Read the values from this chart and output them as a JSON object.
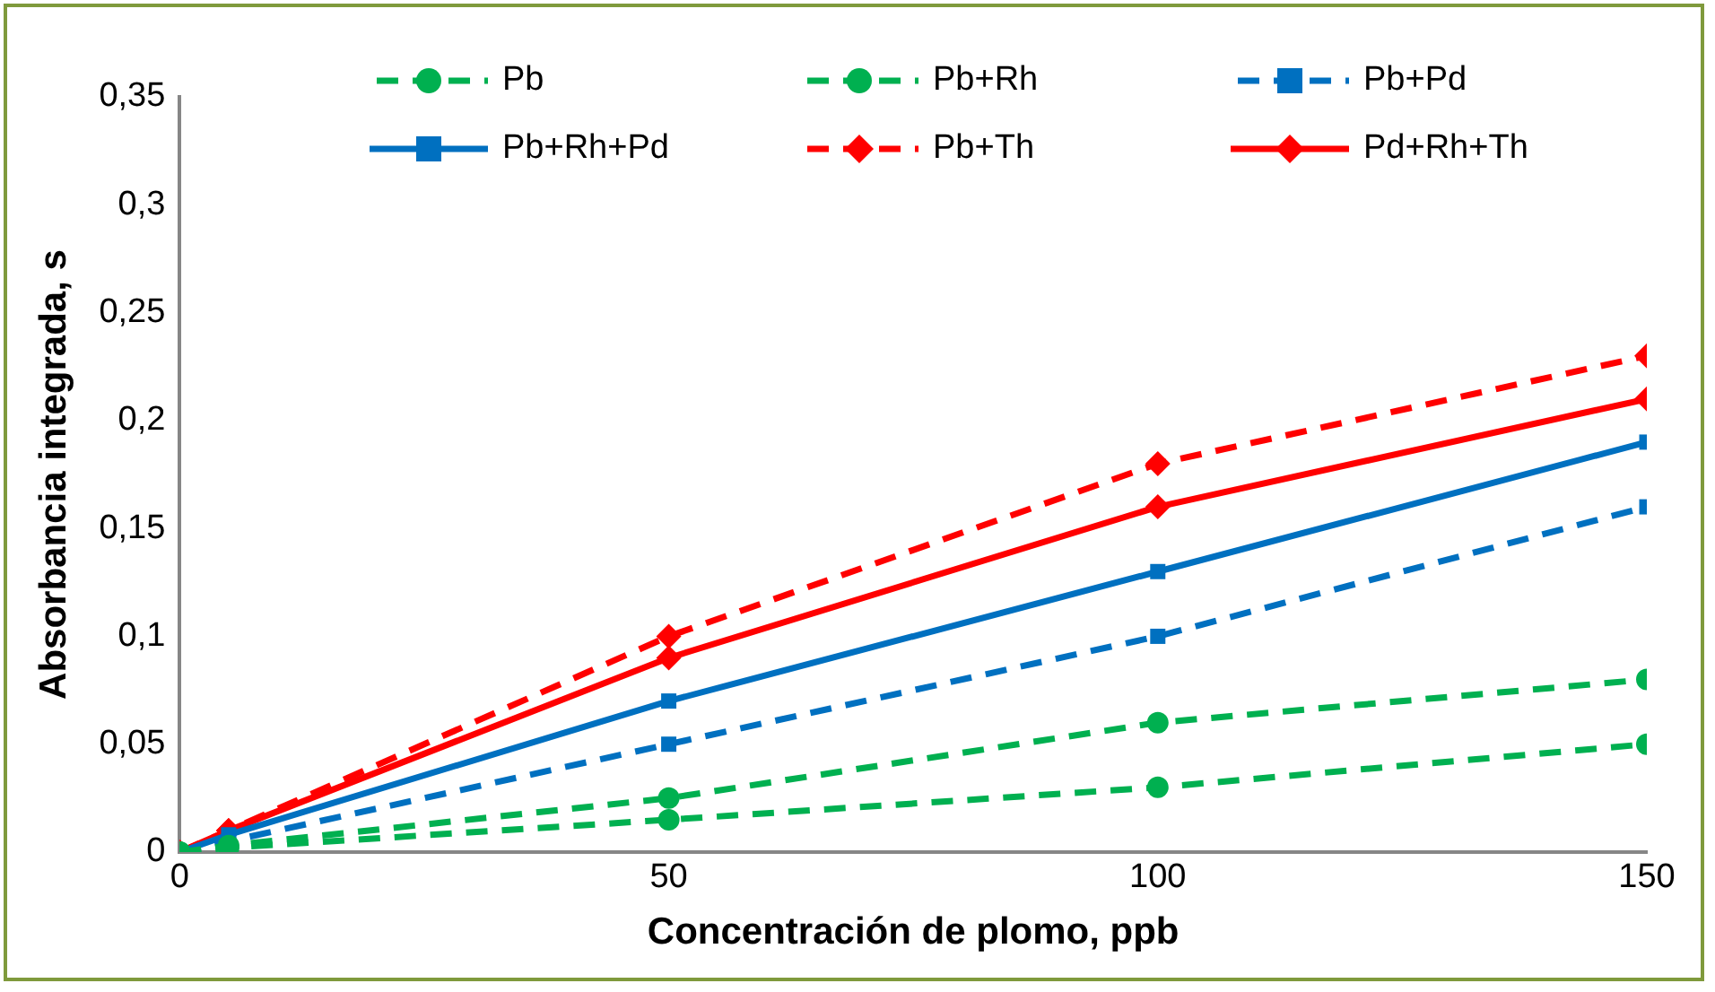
{
  "chart_data": {
    "type": "line",
    "xlabel": "Concentración de plomo, ppb",
    "ylabel": "Absorbancia integrada, s",
    "x": [
      0,
      5,
      50,
      100,
      150
    ],
    "series": [
      {
        "name": "Pb",
        "color": "#00b050",
        "values": [
          0,
          0.002,
          0.015,
          0.03,
          0.05
        ],
        "marker": "circle",
        "line_style": "dashed"
      },
      {
        "name": "Pb+Rh",
        "color": "#00b050",
        "values": [
          0,
          0.003,
          0.025,
          0.06,
          0.08
        ],
        "marker": "circle",
        "line_style": "dashed"
      },
      {
        "name": "Pb+Pd",
        "color": "#0070c0",
        "values": [
          0,
          0.005,
          0.05,
          0.1,
          0.16
        ],
        "marker": "square",
        "line_style": "dashed"
      },
      {
        "name": "Pb+Rh+Pd",
        "color": "#0070c0",
        "values": [
          0,
          0.008,
          0.07,
          0.13,
          0.19
        ],
        "marker": "square",
        "line_style": "solid"
      },
      {
        "name": "Pb+Th",
        "color": "#ff0000",
        "values": [
          0,
          0.01,
          0.1,
          0.18,
          0.23
        ],
        "marker": "diamond",
        "line_style": "dashed"
      },
      {
        "name": "Pd+Rh+Th",
        "color": "#ff0000",
        "values": [
          0,
          0.01,
          0.09,
          0.16,
          0.21
        ],
        "marker": "diamond",
        "line_style": "solid"
      }
    ],
    "xlim": [
      0,
      150
    ],
    "xticks": [
      0,
      50,
      100,
      150
    ],
    "ylim": [
      0,
      0.35
    ],
    "yticks": [
      0,
      {
        "value": 0.05,
        "label": "0,05"
      },
      {
        "value": 0.1,
        "label": "0,1"
      },
      {
        "value": 0.15,
        "label": "0,15"
      },
      {
        "value": 0.2,
        "label": "0,2"
      },
      {
        "value": 0.25,
        "label": "0,25"
      },
      {
        "value": 0.3,
        "label": "0,3"
      },
      {
        "value": 0.35,
        "label": "0,35"
      }
    ],
    "grid": false,
    "legend": "top"
  }
}
